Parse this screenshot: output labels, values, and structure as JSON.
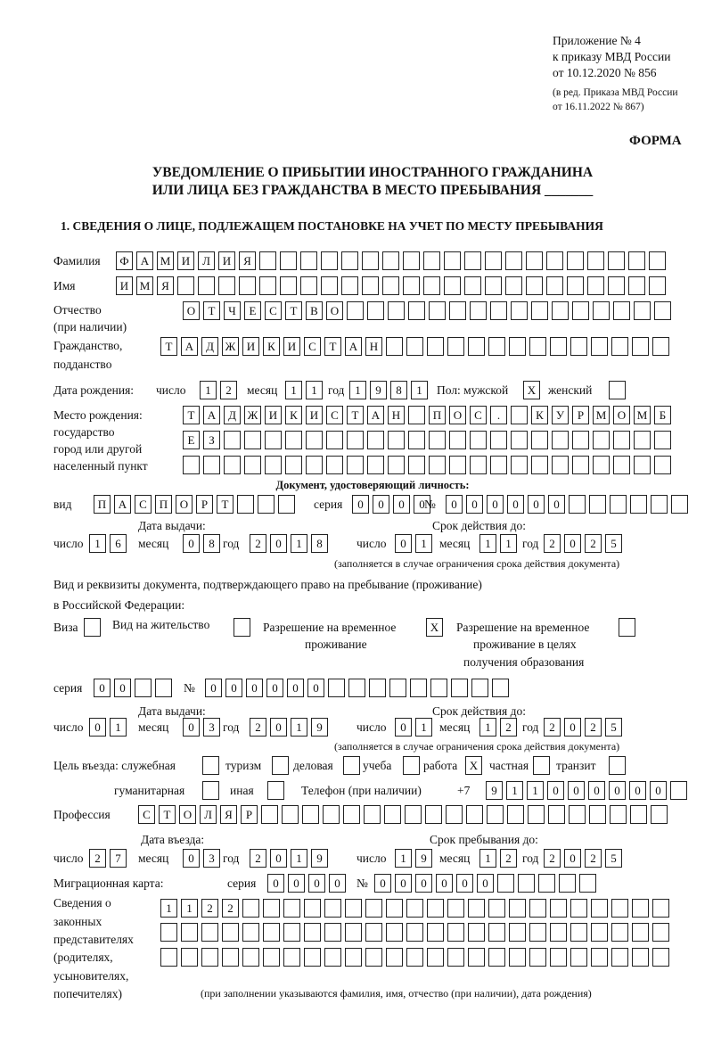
{
  "header": {
    "appendix": [
      "Приложение № 4",
      "к приказу МВД России",
      "от 10.12.2020 № 856"
    ],
    "revision": [
      "(в ред. Приказа МВД России",
      "от 16.11.2022 № 867)"
    ],
    "form_label": "ФОРМА",
    "title1": "УВЕДОМЛЕНИЕ О ПРИБЫТИИ ИНОСТРАННОГО ГРАЖДАНИНА",
    "title2": "ИЛИ ЛИЦА БЕЗ ГРАЖДАНСТВА В МЕСТО ПРЕБЫВАНИЯ _______",
    "section1": "1. СВЕДЕНИЯ О ЛИЦЕ, ПОДЛЕЖАЩЕМ ПОСТАНОВКЕ НА УЧЕТ ПО МЕСТУ ПРЕБЫВАНИЯ"
  },
  "labels": {
    "surname": "Фамилия",
    "name": "Имя",
    "patronymic": "Отчество",
    "patronymic2": "(при наличии)",
    "citizenship": "Гражданство,",
    "citizenship2": "подданство",
    "dob": "Дата рождения:",
    "day": "число",
    "month": "месяц",
    "year": "год",
    "sex": "Пол: мужской",
    "female": "женский",
    "pob1": "Место рождения:",
    "pob2": "государство",
    "pob3": "город или другой",
    "pob4": "населенный пункт",
    "id_doc": "Документ, удостоверяющий личность:",
    "kind": "вид",
    "series": "серия",
    "number": "№",
    "issue_date": "Дата выдачи:",
    "valid_until": "Срок действия до:",
    "valid_note": "(заполняется в случае ограничения срока действия документа)",
    "right_doc1": "Вид и реквизиты документа, подтверждающего право на пребывание (проживание)",
    "right_doc2": "в Российской Федерации:",
    "visa": "Виза",
    "residence": "Вид на жительство",
    "trp1": "Разрешение на временное",
    "trp2": "проживание",
    "trpe1": "Разрешение на временное",
    "trpe2": "проживание в целях",
    "trpe3": "получения образования",
    "purpose": "Цель въезда: служебная",
    "tourism": "туризм",
    "business": "деловая",
    "study": "учеба",
    "work": "работа",
    "private": "частная",
    "transit": "транзит",
    "humanitarian": "гуманитарная",
    "other": "иная",
    "phone": "Телефон (при наличии)",
    "phone_prefix": "+7",
    "profession": "Профессия",
    "entry_date": "Дата въезда:",
    "stay_until": "Срок пребывания до:",
    "migration_card": "Миграционная карта:",
    "reps": [
      "Сведения о",
      "законных",
      "представителях",
      "(родителях,",
      "усыновителях,",
      "попечителях)"
    ],
    "reps_note": "(при заполнении указываются фамилия, имя, отчество (при наличии), дата рождения)"
  },
  "fields": {
    "surname": [
      "Ф",
      "А",
      "М",
      "И",
      "Л",
      "И",
      "Я",
      "",
      "",
      "",
      "",
      "",
      "",
      "",
      "",
      "",
      "",
      "",
      "",
      "",
      "",
      "",
      "",
      "",
      "",
      "",
      ""
    ],
    "name": [
      "И",
      "М",
      "Я",
      "",
      "",
      "",
      "",
      "",
      "",
      "",
      "",
      "",
      "",
      "",
      "",
      "",
      "",
      "",
      "",
      "",
      "",
      "",
      "",
      "",
      "",
      "",
      ""
    ],
    "patronymic": [
      "О",
      "Т",
      "Ч",
      "Е",
      "С",
      "Т",
      "В",
      "О",
      "",
      "",
      "",
      "",
      "",
      "",
      "",
      "",
      "",
      "",
      "",
      "",
      "",
      "",
      "",
      ""
    ],
    "citizenship": [
      "Т",
      "А",
      "Д",
      "Ж",
      "И",
      "К",
      "И",
      "С",
      "Т",
      "А",
      "Н",
      "",
      "",
      "",
      "",
      "",
      "",
      "",
      "",
      "",
      "",
      "",
      "",
      "",
      ""
    ],
    "dob_day": [
      "1",
      "2"
    ],
    "dob_month": [
      "1",
      "1"
    ],
    "dob_year": [
      "1",
      "9",
      "8",
      "1"
    ],
    "sex_male": [
      "X"
    ],
    "sex_female": [
      ""
    ],
    "pob1": [
      "Т",
      "А",
      "Д",
      "Ж",
      "И",
      "К",
      "И",
      "С",
      "Т",
      "А",
      "Н",
      "",
      "П",
      "О",
      "С",
      ".",
      "",
      "К",
      "У",
      "Р",
      "М",
      "О",
      "М",
      "Б"
    ],
    "pob2": [
      "Е",
      "З",
      "",
      "",
      "",
      "",
      "",
      "",
      "",
      "",
      "",
      "",
      "",
      "",
      "",
      "",
      "",
      "",
      "",
      "",
      "",
      "",
      "",
      ""
    ],
    "pob3": [
      "",
      "",
      "",
      "",
      "",
      "",
      "",
      "",
      "",
      "",
      "",
      "",
      "",
      "",
      "",
      "",
      "",
      "",
      "",
      "",
      "",
      "",
      "",
      ""
    ],
    "doc_kind": [
      "П",
      "А",
      "С",
      "П",
      "О",
      "Р",
      "Т",
      "",
      "",
      ""
    ],
    "doc_series": [
      "0",
      "0",
      "0",
      "0"
    ],
    "doc_number": [
      "0",
      "0",
      "0",
      "0",
      "0",
      "0",
      "",
      "",
      "",
      "",
      "",
      ""
    ],
    "doc_issue_day": [
      "1",
      "6"
    ],
    "doc_issue_month": [
      "0",
      "8"
    ],
    "doc_issue_year": [
      "2",
      "0",
      "1",
      "8"
    ],
    "doc_valid_day": [
      "0",
      "1"
    ],
    "doc_valid_month": [
      "1",
      "1"
    ],
    "doc_valid_year": [
      "2",
      "0",
      "2",
      "5"
    ],
    "visa": [
      ""
    ],
    "residence": [
      ""
    ],
    "trp": [
      "X"
    ],
    "trpe": [
      ""
    ],
    "rd_series": [
      "0",
      "0",
      "",
      ""
    ],
    "rd_number": [
      "0",
      "0",
      "0",
      "0",
      "0",
      "0",
      "",
      "",
      "",
      "",
      "",
      "",
      "",
      "",
      ""
    ],
    "rd_issue_day": [
      "0",
      "1"
    ],
    "rd_issue_month": [
      "0",
      "3"
    ],
    "rd_issue_year": [
      "2",
      "0",
      "1",
      "9"
    ],
    "rd_valid_day": [
      "0",
      "1"
    ],
    "rd_valid_month": [
      "1",
      "2"
    ],
    "rd_valid_year": [
      "2",
      "0",
      "2",
      "5"
    ],
    "p_official": [
      ""
    ],
    "p_tourism": [
      ""
    ],
    "p_business": [
      ""
    ],
    "p_study": [
      ""
    ],
    "p_work": [
      "X"
    ],
    "p_private": [
      ""
    ],
    "p_transit": [
      ""
    ],
    "p_humanitarian": [
      ""
    ],
    "p_other": [
      ""
    ],
    "phone": [
      "9",
      "1",
      "1",
      "0",
      "0",
      "0",
      "0",
      "0",
      "0",
      ""
    ],
    "profession": [
      "С",
      "Т",
      "О",
      "Л",
      "Я",
      "Р",
      "",
      "",
      "",
      "",
      "",
      "",
      "",
      "",
      "",
      "",
      "",
      "",
      "",
      "",
      "",
      "",
      "",
      "",
      "",
      ""
    ],
    "entry_day": [
      "2",
      "7"
    ],
    "entry_month": [
      "0",
      "3"
    ],
    "entry_year": [
      "2",
      "0",
      "1",
      "9"
    ],
    "stay_day": [
      "1",
      "9"
    ],
    "stay_month": [
      "1",
      "2"
    ],
    "stay_year": [
      "2",
      "0",
      "2",
      "5"
    ],
    "mc_series": [
      "0",
      "0",
      "0",
      "0"
    ],
    "mc_number": [
      "0",
      "0",
      "0",
      "0",
      "0",
      "0",
      "",
      "",
      "",
      "",
      ""
    ],
    "reps1": [
      "1",
      "1",
      "2",
      "2",
      "",
      "",
      "",
      "",
      "",
      "",
      "",
      "",
      "",
      "",
      "",
      "",
      "",
      "",
      "",
      "",
      "",
      "",
      "",
      "",
      ""
    ],
    "reps2": [
      "",
      "",
      "",
      "",
      "",
      "",
      "",
      "",
      "",
      "",
      "",
      "",
      "",
      "",
      "",
      "",
      "",
      "",
      "",
      "",
      "",
      "",
      "",
      "",
      ""
    ],
    "reps3": [
      "",
      "",
      "",
      "",
      "",
      "",
      "",
      "",
      "",
      "",
      "",
      "",
      "",
      "",
      "",
      "",
      "",
      "",
      "",
      "",
      "",
      "",
      "",
      "",
      ""
    ]
  }
}
